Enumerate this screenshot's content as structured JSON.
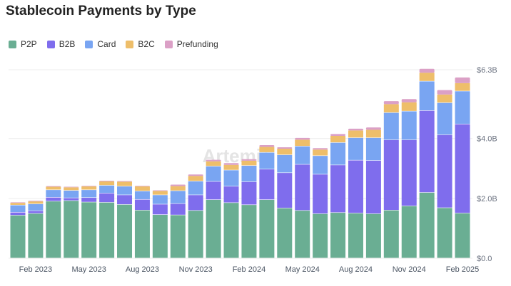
{
  "chart_data": {
    "type": "bar",
    "stacked": true,
    "title": "Stablecoin Payments by Type",
    "watermark": "Artemis",
    "legend_position": "top-left",
    "grid": true,
    "ylim": [
      0,
      6.3
    ],
    "y_ticks": [
      {
        "value": 0,
        "label": "$0.0"
      },
      {
        "value": 2,
        "label": "$2.0B"
      },
      {
        "value": 4,
        "label": "$4.0B"
      },
      {
        "value": 6.3,
        "label": "$6.3B"
      }
    ],
    "x_ticks": [
      {
        "index": 1,
        "label": "Feb 2023"
      },
      {
        "index": 4,
        "label": "May 2023"
      },
      {
        "index": 7,
        "label": "Aug 2023"
      },
      {
        "index": 10,
        "label": "Nov 2023"
      },
      {
        "index": 13,
        "label": "Feb 2024"
      },
      {
        "index": 16,
        "label": "May 2024"
      },
      {
        "index": 19,
        "label": "Aug 2024"
      },
      {
        "index": 22,
        "label": "Nov 2024"
      },
      {
        "index": 25,
        "label": "Feb 2025"
      }
    ],
    "categories": [
      "Jan 2023",
      "Feb 2023",
      "Mar 2023",
      "Apr 2023",
      "May 2023",
      "Jun 2023",
      "Jul 2023",
      "Aug 2023",
      "Sep 2023",
      "Oct 2023",
      "Nov 2023",
      "Dec 2023",
      "Jan 2024",
      "Feb 2024",
      "Mar 2024",
      "Apr 2024",
      "May 2024",
      "Jun 2024",
      "Jul 2024",
      "Aug 2024",
      "Sep 2024",
      "Oct 2024",
      "Nov 2024",
      "Dec 2024",
      "Jan 2025",
      "Feb 2025"
    ],
    "series": [
      {
        "name": "P2P",
        "color": "#6aae93",
        "values": [
          1.43,
          1.49,
          1.9,
          1.92,
          1.87,
          1.86,
          1.79,
          1.6,
          1.45,
          1.44,
          1.59,
          1.95,
          1.85,
          1.78,
          1.95,
          1.67,
          1.59,
          1.48,
          1.52,
          1.5,
          1.48,
          1.6,
          1.74,
          2.19,
          1.68,
          1.5
        ]
      },
      {
        "name": "B2B",
        "color": "#7f6ded",
        "values": [
          0.1,
          0.09,
          0.13,
          0.09,
          0.15,
          0.31,
          0.32,
          0.36,
          0.35,
          0.38,
          0.52,
          0.61,
          0.55,
          0.77,
          1.02,
          1.18,
          1.54,
          1.32,
          1.59,
          1.77,
          1.78,
          2.35,
          2.21,
          2.74,
          2.44,
          2.98
        ]
      },
      {
        "name": "Card",
        "color": "#79a5f2",
        "values": [
          0.24,
          0.23,
          0.25,
          0.25,
          0.26,
          0.26,
          0.29,
          0.28,
          0.31,
          0.43,
          0.46,
          0.51,
          0.54,
          0.54,
          0.56,
          0.6,
          0.61,
          0.62,
          0.75,
          0.75,
          0.76,
          0.91,
          0.96,
          0.98,
          1.07,
          1.1
        ]
      },
      {
        "name": "B2C",
        "color": "#eebe6a",
        "values": [
          0.08,
          0.09,
          0.11,
          0.11,
          0.12,
          0.14,
          0.16,
          0.16,
          0.14,
          0.16,
          0.18,
          0.17,
          0.18,
          0.17,
          0.19,
          0.21,
          0.22,
          0.21,
          0.23,
          0.25,
          0.27,
          0.29,
          0.3,
          0.29,
          0.28,
          0.27
        ]
      },
      {
        "name": "Prefunding",
        "color": "#dba0c6",
        "values": [
          0.02,
          0.02,
          0.02,
          0.02,
          0.02,
          0.02,
          0.02,
          0.02,
          0.02,
          0.05,
          0.05,
          0.05,
          0.06,
          0.05,
          0.06,
          0.05,
          0.06,
          0.05,
          0.06,
          0.06,
          0.08,
          0.1,
          0.11,
          0.13,
          0.15,
          0.19
        ]
      }
    ]
  }
}
